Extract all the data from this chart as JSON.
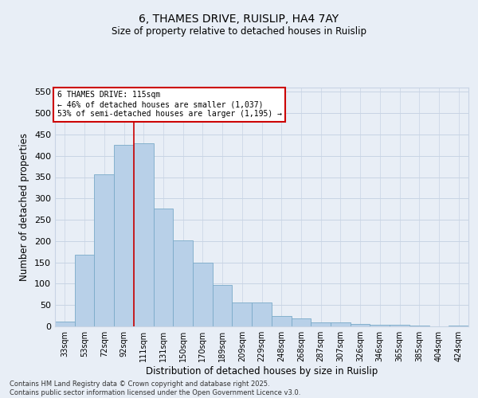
{
  "title_line1": "6, THAMES DRIVE, RUISLIP, HA4 7AY",
  "title_line2": "Size of property relative to detached houses in Ruislip",
  "xlabel": "Distribution of detached houses by size in Ruislip",
  "ylabel": "Number of detached properties",
  "categories": [
    "33sqm",
    "53sqm",
    "72sqm",
    "92sqm",
    "111sqm",
    "131sqm",
    "150sqm",
    "170sqm",
    "189sqm",
    "209sqm",
    "229sqm",
    "248sqm",
    "268sqm",
    "287sqm",
    "307sqm",
    "326sqm",
    "346sqm",
    "365sqm",
    "385sqm",
    "404sqm",
    "424sqm"
  ],
  "values": [
    12,
    168,
    357,
    425,
    430,
    277,
    202,
    149,
    97,
    56,
    56,
    25,
    18,
    10,
    10,
    5,
    3,
    3,
    1,
    0,
    1
  ],
  "bar_color": "#b8d0e8",
  "bar_edge_color": "#7aaac8",
  "grid_color": "#c8d4e4",
  "background_color": "#e8eef6",
  "annotation_box_color": "#ffffff",
  "annotation_border_color": "#cc0000",
  "vline_color": "#cc0000",
  "vline_x_index": 4,
  "annotation_title": "6 THAMES DRIVE: 115sqm",
  "annotation_line1": "← 46% of detached houses are smaller (1,037)",
  "annotation_line2": "53% of semi-detached houses are larger (1,195) →",
  "ylim": [
    0,
    560
  ],
  "yticks": [
    0,
    50,
    100,
    150,
    200,
    250,
    300,
    350,
    400,
    450,
    500,
    550
  ],
  "footnote1": "Contains HM Land Registry data © Crown copyright and database right 2025.",
  "footnote2": "Contains public sector information licensed under the Open Government Licence v3.0."
}
